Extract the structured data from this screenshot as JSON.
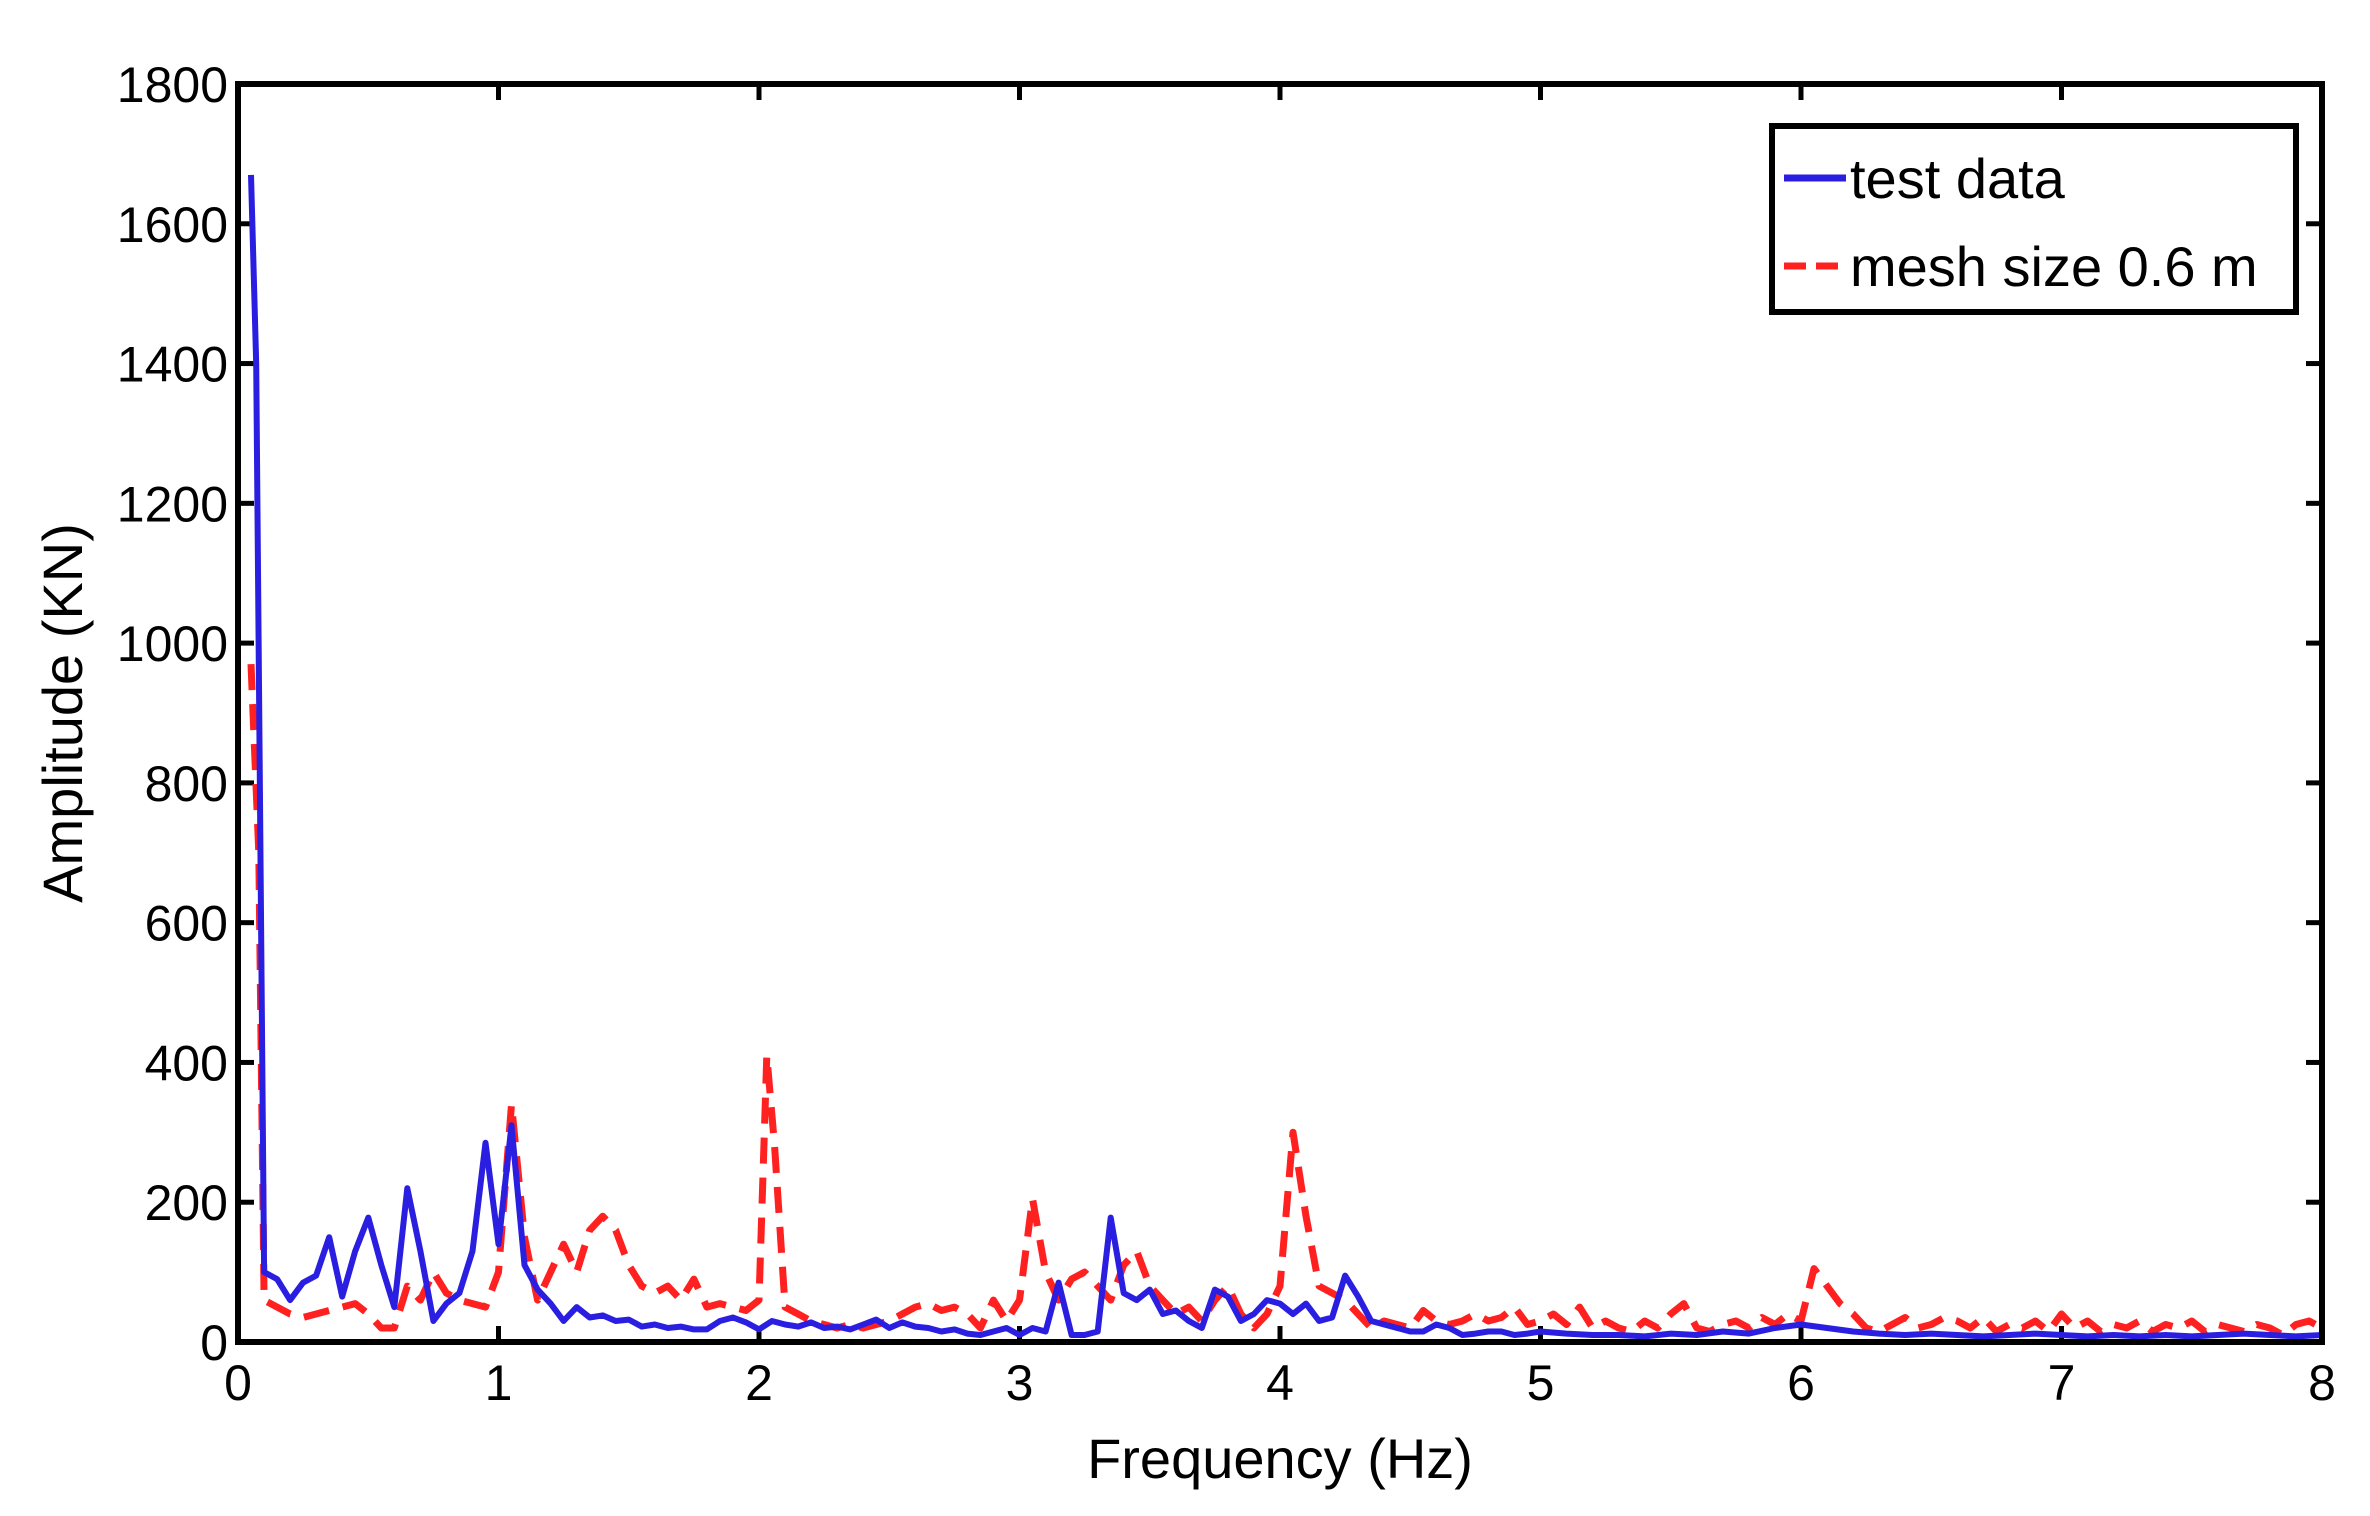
{
  "chart_data": {
    "type": "line",
    "xlabel": "Frequency (Hz)",
    "ylabel": "Amplitude (KN)",
    "xlim": [
      0,
      8
    ],
    "ylim": [
      0,
      1800
    ],
    "xticks": [
      0,
      1,
      2,
      3,
      4,
      5,
      6,
      7,
      8
    ],
    "yticks": [
      0,
      200,
      400,
      600,
      800,
      1000,
      1200,
      1400,
      1600,
      1800
    ],
    "grid": false,
    "legend_position": "top-right",
    "series": [
      {
        "name": "test data",
        "color": "#2a1ee0",
        "dash": "solid",
        "points": [
          [
            0.05,
            1670
          ],
          [
            0.07,
            1400
          ],
          [
            0.1,
            100
          ],
          [
            0.15,
            90
          ],
          [
            0.2,
            60
          ],
          [
            0.25,
            85
          ],
          [
            0.3,
            95
          ],
          [
            0.35,
            150
          ],
          [
            0.4,
            65
          ],
          [
            0.45,
            130
          ],
          [
            0.5,
            178
          ],
          [
            0.55,
            110
          ],
          [
            0.6,
            50
          ],
          [
            0.65,
            220
          ],
          [
            0.7,
            130
          ],
          [
            0.75,
            30
          ],
          [
            0.8,
            55
          ],
          [
            0.85,
            70
          ],
          [
            0.9,
            130
          ],
          [
            0.95,
            285
          ],
          [
            1.0,
            140
          ],
          [
            1.05,
            310
          ],
          [
            1.1,
            110
          ],
          [
            1.15,
            75
          ],
          [
            1.2,
            55
          ],
          [
            1.25,
            30
          ],
          [
            1.3,
            50
          ],
          [
            1.35,
            35
          ],
          [
            1.4,
            38
          ],
          [
            1.45,
            30
          ],
          [
            1.5,
            32
          ],
          [
            1.55,
            22
          ],
          [
            1.6,
            25
          ],
          [
            1.65,
            20
          ],
          [
            1.7,
            22
          ],
          [
            1.75,
            18
          ],
          [
            1.8,
            18
          ],
          [
            1.85,
            30
          ],
          [
            1.9,
            35
          ],
          [
            1.95,
            28
          ],
          [
            2.0,
            18
          ],
          [
            2.05,
            30
          ],
          [
            2.1,
            25
          ],
          [
            2.15,
            22
          ],
          [
            2.2,
            28
          ],
          [
            2.25,
            20
          ],
          [
            2.3,
            22
          ],
          [
            2.35,
            18
          ],
          [
            2.4,
            25
          ],
          [
            2.45,
            32
          ],
          [
            2.5,
            20
          ],
          [
            2.55,
            28
          ],
          [
            2.6,
            22
          ],
          [
            2.65,
            20
          ],
          [
            2.7,
            15
          ],
          [
            2.75,
            18
          ],
          [
            2.8,
            12
          ],
          [
            2.85,
            10
          ],
          [
            2.9,
            15
          ],
          [
            2.95,
            20
          ],
          [
            3.0,
            10
          ],
          [
            3.05,
            20
          ],
          [
            3.1,
            15
          ],
          [
            3.15,
            85
          ],
          [
            3.2,
            10
          ],
          [
            3.25,
            10
          ],
          [
            3.3,
            15
          ],
          [
            3.35,
            178
          ],
          [
            3.4,
            70
          ],
          [
            3.45,
            60
          ],
          [
            3.5,
            75
          ],
          [
            3.55,
            40
          ],
          [
            3.6,
            45
          ],
          [
            3.65,
            30
          ],
          [
            3.7,
            20
          ],
          [
            3.75,
            75
          ],
          [
            3.8,
            65
          ],
          [
            3.85,
            30
          ],
          [
            3.9,
            40
          ],
          [
            3.95,
            60
          ],
          [
            4.0,
            55
          ],
          [
            4.05,
            40
          ],
          [
            4.1,
            55
          ],
          [
            4.15,
            30
          ],
          [
            4.2,
            35
          ],
          [
            4.25,
            95
          ],
          [
            4.3,
            65
          ],
          [
            4.35,
            30
          ],
          [
            4.4,
            25
          ],
          [
            4.45,
            20
          ],
          [
            4.5,
            15
          ],
          [
            4.55,
            15
          ],
          [
            4.6,
            25
          ],
          [
            4.65,
            20
          ],
          [
            4.7,
            10
          ],
          [
            4.75,
            12
          ],
          [
            4.8,
            15
          ],
          [
            4.85,
            15
          ],
          [
            4.9,
            10
          ],
          [
            4.95,
            12
          ],
          [
            5.0,
            15
          ],
          [
            5.1,
            12
          ],
          [
            5.2,
            10
          ],
          [
            5.3,
            10
          ],
          [
            5.4,
            8
          ],
          [
            5.5,
            12
          ],
          [
            5.6,
            10
          ],
          [
            5.7,
            15
          ],
          [
            5.8,
            12
          ],
          [
            5.9,
            20
          ],
          [
            6.0,
            25
          ],
          [
            6.1,
            20
          ],
          [
            6.2,
            15
          ],
          [
            6.3,
            12
          ],
          [
            6.4,
            10
          ],
          [
            6.5,
            12
          ],
          [
            6.6,
            10
          ],
          [
            6.7,
            8
          ],
          [
            6.8,
            10
          ],
          [
            6.9,
            12
          ],
          [
            7.0,
            10
          ],
          [
            7.1,
            8
          ],
          [
            7.2,
            10
          ],
          [
            7.3,
            8
          ],
          [
            7.4,
            10
          ],
          [
            7.5,
            8
          ],
          [
            7.6,
            10
          ],
          [
            7.7,
            12
          ],
          [
            7.8,
            10
          ],
          [
            7.9,
            8
          ],
          [
            8.0,
            10
          ]
        ]
      },
      {
        "name": "mesh size 0.6 m",
        "color": "#ff2020",
        "dash": "dashed",
        "points": [
          [
            0.05,
            970
          ],
          [
            0.08,
            700
          ],
          [
            0.1,
            60
          ],
          [
            0.15,
            50
          ],
          [
            0.2,
            40
          ],
          [
            0.25,
            35
          ],
          [
            0.3,
            40
          ],
          [
            0.35,
            45
          ],
          [
            0.4,
            50
          ],
          [
            0.45,
            55
          ],
          [
            0.5,
            40
          ],
          [
            0.55,
            20
          ],
          [
            0.6,
            20
          ],
          [
            0.65,
            80
          ],
          [
            0.7,
            60
          ],
          [
            0.75,
            100
          ],
          [
            0.8,
            70
          ],
          [
            0.85,
            60
          ],
          [
            0.9,
            55
          ],
          [
            0.95,
            50
          ],
          [
            1.0,
            100
          ],
          [
            1.05,
            340
          ],
          [
            1.1,
            150
          ],
          [
            1.15,
            60
          ],
          [
            1.2,
            100
          ],
          [
            1.25,
            140
          ],
          [
            1.3,
            100
          ],
          [
            1.35,
            160
          ],
          [
            1.4,
            180
          ],
          [
            1.45,
            160
          ],
          [
            1.5,
            110
          ],
          [
            1.55,
            80
          ],
          [
            1.6,
            70
          ],
          [
            1.65,
            80
          ],
          [
            1.7,
            60
          ],
          [
            1.75,
            90
          ],
          [
            1.8,
            50
          ],
          [
            1.85,
            55
          ],
          [
            1.9,
            50
          ],
          [
            1.95,
            45
          ],
          [
            2.0,
            60
          ],
          [
            2.03,
            410
          ],
          [
            2.06,
            280
          ],
          [
            2.1,
            50
          ],
          [
            2.15,
            40
          ],
          [
            2.2,
            30
          ],
          [
            2.25,
            25
          ],
          [
            2.3,
            20
          ],
          [
            2.35,
            25
          ],
          [
            2.4,
            20
          ],
          [
            2.45,
            25
          ],
          [
            2.5,
            30
          ],
          [
            2.55,
            40
          ],
          [
            2.6,
            50
          ],
          [
            2.65,
            55
          ],
          [
            2.7,
            45
          ],
          [
            2.75,
            50
          ],
          [
            2.8,
            40
          ],
          [
            2.85,
            20
          ],
          [
            2.9,
            60
          ],
          [
            2.95,
            30
          ],
          [
            3.0,
            60
          ],
          [
            3.05,
            205
          ],
          [
            3.1,
            100
          ],
          [
            3.15,
            60
          ],
          [
            3.2,
            90
          ],
          [
            3.25,
            100
          ],
          [
            3.3,
            80
          ],
          [
            3.35,
            60
          ],
          [
            3.4,
            110
          ],
          [
            3.45,
            130
          ],
          [
            3.5,
            80
          ],
          [
            3.55,
            60
          ],
          [
            3.6,
            40
          ],
          [
            3.65,
            50
          ],
          [
            3.7,
            30
          ],
          [
            3.75,
            60
          ],
          [
            3.8,
            80
          ],
          [
            3.85,
            40
          ],
          [
            3.9,
            20
          ],
          [
            3.95,
            40
          ],
          [
            4.0,
            80
          ],
          [
            4.05,
            300
          ],
          [
            4.1,
            180
          ],
          [
            4.15,
            80
          ],
          [
            4.2,
            70
          ],
          [
            4.25,
            60
          ],
          [
            4.3,
            40
          ],
          [
            4.35,
            20
          ],
          [
            4.4,
            30
          ],
          [
            4.45,
            25
          ],
          [
            4.5,
            20
          ],
          [
            4.55,
            45
          ],
          [
            4.6,
            30
          ],
          [
            4.65,
            25
          ],
          [
            4.7,
            30
          ],
          [
            4.75,
            40
          ],
          [
            4.8,
            30
          ],
          [
            4.85,
            35
          ],
          [
            4.9,
            50
          ],
          [
            4.95,
            25
          ],
          [
            5.0,
            30
          ],
          [
            5.05,
            40
          ],
          [
            5.1,
            25
          ],
          [
            5.15,
            50
          ],
          [
            5.2,
            20
          ],
          [
            5.25,
            30
          ],
          [
            5.3,
            20
          ],
          [
            5.35,
            15
          ],
          [
            5.4,
            30
          ],
          [
            5.45,
            20
          ],
          [
            5.5,
            40
          ],
          [
            5.55,
            55
          ],
          [
            5.6,
            20
          ],
          [
            5.65,
            15
          ],
          [
            5.7,
            25
          ],
          [
            5.75,
            30
          ],
          [
            5.8,
            20
          ],
          [
            5.85,
            35
          ],
          [
            5.9,
            25
          ],
          [
            5.95,
            40
          ],
          [
            6.0,
            30
          ],
          [
            6.05,
            105
          ],
          [
            6.1,
            80
          ],
          [
            6.15,
            55
          ],
          [
            6.2,
            40
          ],
          [
            6.25,
            20
          ],
          [
            6.3,
            15
          ],
          [
            6.35,
            25
          ],
          [
            6.4,
            35
          ],
          [
            6.45,
            20
          ],
          [
            6.5,
            25
          ],
          [
            6.55,
            35
          ],
          [
            6.6,
            30
          ],
          [
            6.65,
            20
          ],
          [
            6.7,
            35
          ],
          [
            6.75,
            15
          ],
          [
            6.8,
            25
          ],
          [
            6.85,
            20
          ],
          [
            6.9,
            30
          ],
          [
            6.95,
            15
          ],
          [
            7.0,
            40
          ],
          [
            7.05,
            20
          ],
          [
            7.1,
            30
          ],
          [
            7.15,
            15
          ],
          [
            7.2,
            25
          ],
          [
            7.25,
            20
          ],
          [
            7.3,
            30
          ],
          [
            7.35,
            15
          ],
          [
            7.4,
            25
          ],
          [
            7.45,
            20
          ],
          [
            7.5,
            30
          ],
          [
            7.55,
            15
          ],
          [
            7.6,
            25
          ],
          [
            7.65,
            20
          ],
          [
            7.7,
            15
          ],
          [
            7.75,
            25
          ],
          [
            7.8,
            20
          ],
          [
            7.85,
            10
          ],
          [
            7.9,
            25
          ],
          [
            7.95,
            30
          ],
          [
            8.0,
            20
          ]
        ]
      }
    ]
  }
}
